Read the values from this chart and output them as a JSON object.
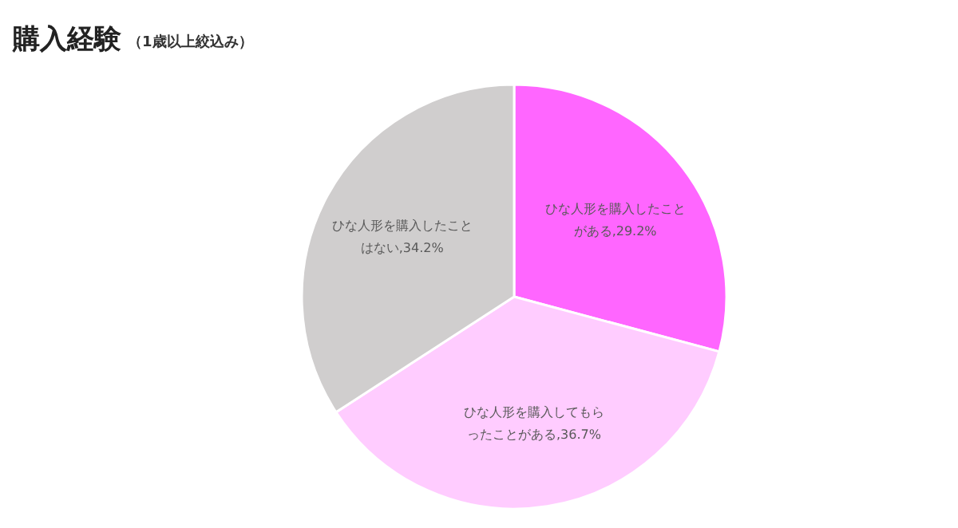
{
  "chart_data": {
    "type": "pie",
    "title": "購入経験",
    "subtitle": "（1歳以上絞込み）",
    "categories": [
      "ひな人形を購入したことがある",
      "ひな人形を購入してもらったことがある",
      "ひな人形を購入したことはない"
    ],
    "values": [
      29.2,
      36.7,
      34.2
    ],
    "value_labels": [
      "29.2%",
      "36.7%",
      "34.2%"
    ],
    "colors": [
      "#ff66ff",
      "#ffccff",
      "#d0cece"
    ]
  }
}
